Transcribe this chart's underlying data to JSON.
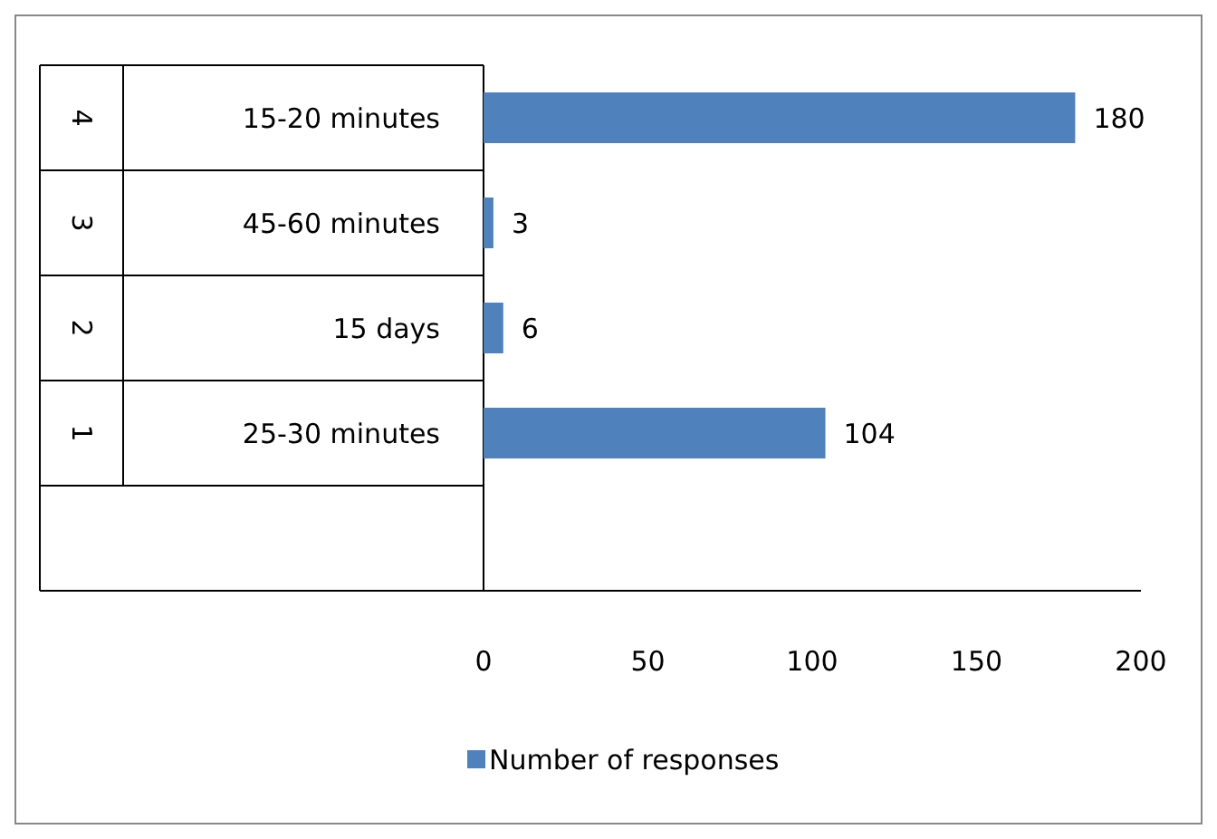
{
  "chart_data": {
    "type": "bar",
    "orientation": "horizontal",
    "categories": [
      "15-20 minutes",
      "45-60 minutes",
      "15 days",
      "25-30 minutes",
      null
    ],
    "series": [
      {
        "name": "Number of responses",
        "color": "#4f81bd",
        "values": [
          180,
          3,
          6,
          104,
          null
        ]
      }
    ],
    "xlim": [
      0,
      200
    ],
    "xticks": [
      0,
      50,
      100,
      150,
      200
    ],
    "grid": false,
    "legend": "bottom",
    "data_labels": true,
    "annotations": [
      "4",
      "3",
      "2",
      "1"
    ]
  }
}
